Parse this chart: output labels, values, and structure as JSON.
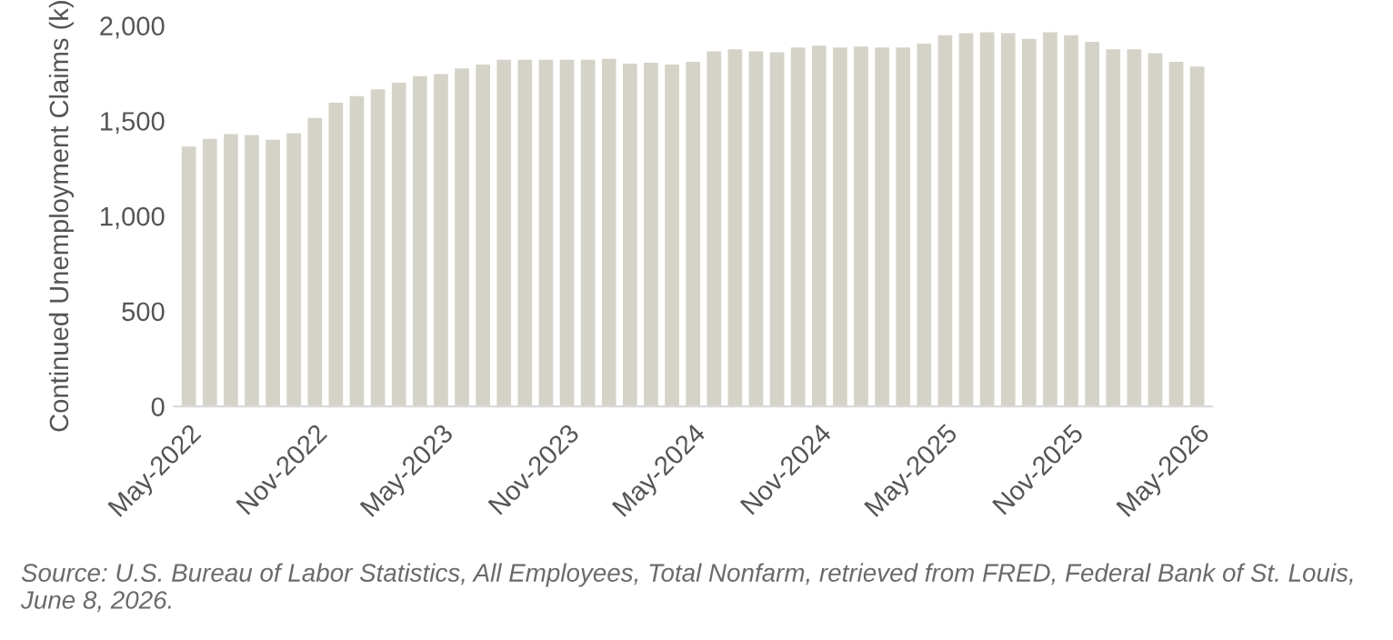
{
  "chart_data": {
    "type": "bar",
    "ylabel": "Continued Unemployment Claims (k)",
    "categories": [
      "May-2022",
      null,
      null,
      null,
      null,
      null,
      "Nov-2022",
      null,
      null,
      null,
      null,
      null,
      "May-2023",
      null,
      null,
      null,
      null,
      null,
      "Nov-2023",
      null,
      null,
      null,
      null,
      null,
      "May-2024",
      null,
      null,
      null,
      null,
      null,
      "Nov-2024",
      null,
      null,
      null,
      null,
      null,
      "May-2025",
      null,
      null,
      null,
      null,
      null,
      "Nov-2025",
      null,
      null,
      null,
      null,
      null,
      "May-2026"
    ],
    "values": [
      1365,
      1405,
      1430,
      1425,
      1400,
      1435,
      1515,
      1595,
      1630,
      1665,
      1700,
      1735,
      1745,
      1775,
      1795,
      1820,
      1820,
      1820,
      1820,
      1820,
      1825,
      1800,
      1805,
      1795,
      1810,
      1865,
      1875,
      1865,
      1860,
      1885,
      1895,
      1885,
      1890,
      1885,
      1885,
      1905,
      1950,
      1960,
      1965,
      1960,
      1930,
      1965,
      1950,
      1915,
      1875,
      1875,
      1855,
      1810,
      1785
    ],
    "color": "#d5d3c8",
    "ylim": [
      0,
      2000
    ],
    "yticks": [
      {
        "value": 0,
        "label": "0"
      },
      {
        "value": 500,
        "label": "500"
      },
      {
        "value": 1000,
        "label": "1,000"
      },
      {
        "value": 1500,
        "label": "1,500"
      },
      {
        "value": 2000,
        "label": "2,000"
      }
    ],
    "grid": false,
    "legend": false,
    "annotations": [
      "Source: U.S. Bureau of Labor Statistics, All Employees, Total Nonfarm, retrieved from FRED, Federal Bank of St. Louis, June 8, 2026."
    ]
  }
}
